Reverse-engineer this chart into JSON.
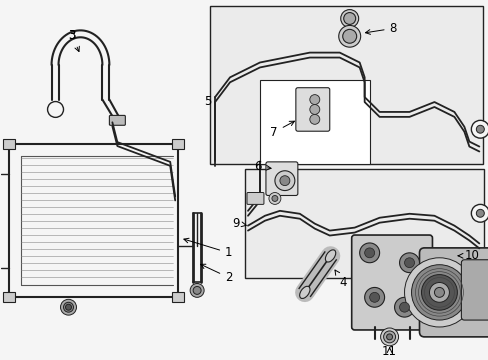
{
  "bg": "#f5f5f5",
  "box_bg": "#ebebeb",
  "white": "#ffffff",
  "lc": "#222222",
  "lw_thin": 0.7,
  "lw_med": 1.2,
  "lw_thick": 1.8,
  "fs": 8.5
}
